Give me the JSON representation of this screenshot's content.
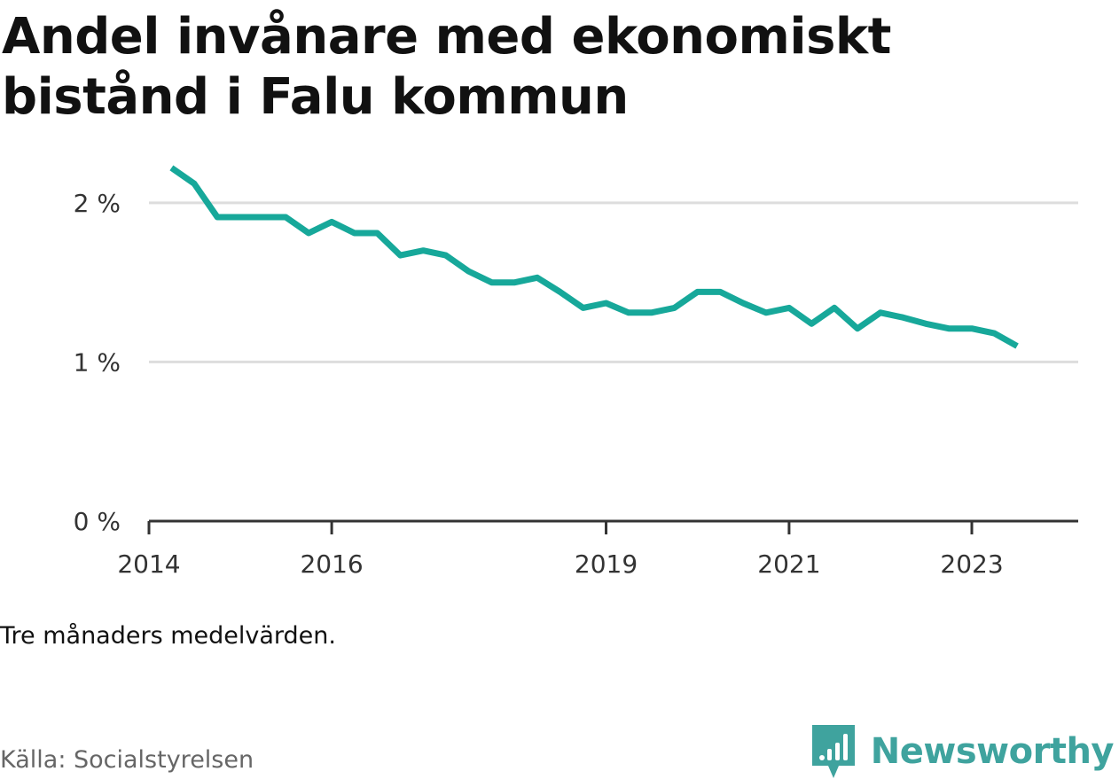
{
  "title": "Andel invånare med ekonomiskt bistånd i Falu kommun",
  "note": "Tre månaders medelvärden.",
  "source": "Källa: Socialstyrelsen",
  "brand": {
    "name": "Newsworthy",
    "icon": "newsworthy-logo-icon",
    "color": "#3fa39e"
  },
  "colors": {
    "line": "#17a89a",
    "grid": "#dddddd",
    "axis": "#333333",
    "text": "#333333"
  },
  "chart_data": {
    "type": "line",
    "title": "Andel invånare med ekonomiskt bistånd i Falu kommun",
    "xlabel": "",
    "ylabel": "",
    "ylim": [
      0,
      2.3
    ],
    "xlim": [
      "2014-01-01",
      "2024-03-01"
    ],
    "grid": true,
    "yticks": [
      {
        "value": 0,
        "label": "0 %"
      },
      {
        "value": 1,
        "label": "1 %"
      },
      {
        "value": 2,
        "label": "2 %"
      }
    ],
    "xticks": [
      {
        "value": "2014-01-01",
        "label": "2014"
      },
      {
        "value": "2016-01-01",
        "label": "2016"
      },
      {
        "value": "2019-01-01",
        "label": "2019"
      },
      {
        "value": "2021-01-01",
        "label": "2021"
      },
      {
        "value": "2023-01-01",
        "label": "2023"
      }
    ],
    "series": [
      {
        "x": [
          "2014-04",
          "2014-07",
          "2014-10",
          "2015-01",
          "2015-04",
          "2015-07",
          "2015-10",
          "2016-01",
          "2016-04",
          "2016-07",
          "2016-10",
          "2017-01",
          "2017-04",
          "2017-07",
          "2017-10",
          "2018-01",
          "2018-04",
          "2018-07",
          "2018-10",
          "2019-01",
          "2019-04",
          "2019-07",
          "2019-10",
          "2020-01",
          "2020-04",
          "2020-07",
          "2020-10",
          "2021-01",
          "2021-04",
          "2021-07",
          "2021-10",
          "2022-01",
          "2022-04",
          "2022-07",
          "2022-10",
          "2023-01",
          "2023-04",
          "2023-07"
        ],
        "y": [
          2.22,
          2.12,
          1.91,
          1.91,
          1.91,
          1.91,
          1.81,
          1.88,
          1.81,
          1.81,
          1.67,
          1.7,
          1.67,
          1.57,
          1.5,
          1.5,
          1.53,
          1.44,
          1.34,
          1.37,
          1.31,
          1.31,
          1.34,
          1.44,
          1.44,
          1.37,
          1.31,
          1.34,
          1.24,
          1.34,
          1.21,
          1.31,
          1.28,
          1.24,
          1.21,
          1.21,
          1.18,
          1.1
        ]
      }
    ]
  }
}
